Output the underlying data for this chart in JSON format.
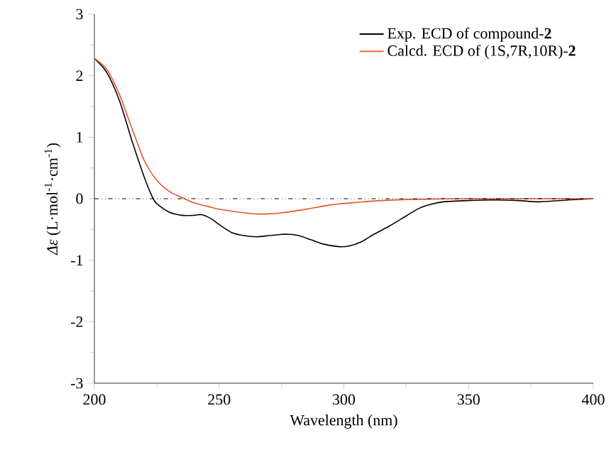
{
  "chart_data": {
    "type": "line",
    "xlabel": "Wavelength (nm)",
    "ylabel": "*Δε* (L·mol$^{-1}$·cm$^{-1}$)",
    "xlim": [
      200,
      400
    ],
    "ylim": [
      -3,
      3
    ],
    "xticks": [
      200,
      250,
      300,
      350,
      400
    ],
    "yticks": [
      -3,
      -2,
      -1,
      0,
      1,
      2,
      3
    ],
    "legend": "top right",
    "grid": false,
    "marker": "none",
    "line_style": "solid",
    "ref_lines": [
      {
        "axis": "y",
        "value": 0,
        "color": "#000000",
        "line_style": "dashdotdotted"
      }
    ],
    "series": [
      {
        "name": "Exp. ECD of compound-**2**",
        "color": "#000000",
        "x": [
          200,
          205,
          210,
          215,
          220,
          223,
          225,
          230,
          235,
          240,
          243,
          247,
          250,
          255,
          260,
          265,
          270,
          275,
          278,
          282,
          287,
          292,
          298,
          302,
          307,
          312,
          318,
          325,
          330,
          335,
          340,
          350,
          360,
          370,
          378,
          390,
          400
        ],
        "values": [
          2.28,
          2.05,
          1.6,
          0.95,
          0.35,
          0.05,
          -0.08,
          -0.22,
          -0.27,
          -0.27,
          -0.26,
          -0.33,
          -0.42,
          -0.55,
          -0.6,
          -0.62,
          -0.6,
          -0.58,
          -0.58,
          -0.6,
          -0.67,
          -0.74,
          -0.78,
          -0.77,
          -0.7,
          -0.58,
          -0.45,
          -0.28,
          -0.16,
          -0.09,
          -0.05,
          -0.03,
          -0.02,
          -0.03,
          -0.05,
          -0.02,
          0
        ]
      },
      {
        "name": "Calcd. ECD of (1S,7R,10R)-**2**",
        "color": "#e8542a",
        "x": [
          200,
          205,
          210,
          215,
          220,
          225,
          230,
          235,
          240,
          245,
          250,
          260,
          267,
          275,
          285,
          295,
          305,
          315,
          330,
          350,
          400
        ],
        "values": [
          2.28,
          2.1,
          1.7,
          1.15,
          0.62,
          0.3,
          0.12,
          0.02,
          -0.07,
          -0.12,
          -0.17,
          -0.23,
          -0.25,
          -0.23,
          -0.17,
          -0.1,
          -0.06,
          -0.03,
          -0.01,
          0,
          0
        ]
      }
    ]
  }
}
